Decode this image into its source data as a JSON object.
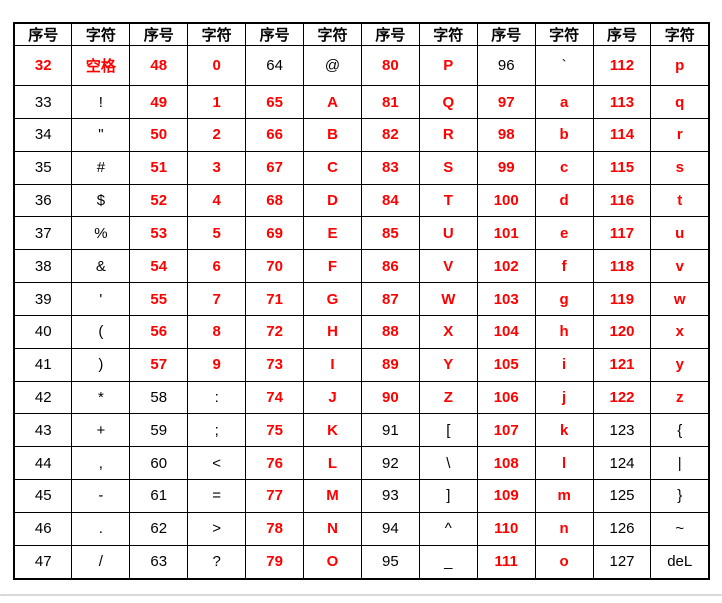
{
  "page": {
    "background": "#ffffff"
  },
  "table": {
    "column_headers": {
      "number": "序号",
      "char": "字符"
    },
    "pair_count": 6,
    "colors": {
      "highlight": "#ff0000",
      "normal": "#000000",
      "border": "#000000",
      "bottom_line": "#d9d9d9"
    },
    "rows": [
      [
        {
          "n": "32",
          "c": "空格",
          "hl": true
        },
        {
          "n": "48",
          "c": "0",
          "hl": true
        },
        {
          "n": "64",
          "c": "@",
          "hl": false
        },
        {
          "n": "80",
          "c": "P",
          "hl": true
        },
        {
          "n": "96",
          "c": "`",
          "hl": false
        },
        {
          "n": "112",
          "c": "p",
          "hl": true
        }
      ],
      [
        {
          "n": "33",
          "c": "!",
          "hl": false
        },
        {
          "n": "49",
          "c": "1",
          "hl": true
        },
        {
          "n": "65",
          "c": "A",
          "hl": true
        },
        {
          "n": "81",
          "c": "Q",
          "hl": true
        },
        {
          "n": "97",
          "c": "a",
          "hl": true
        },
        {
          "n": "113",
          "c": "q",
          "hl": true
        }
      ],
      [
        {
          "n": "34",
          "c": "\"",
          "hl": false
        },
        {
          "n": "50",
          "c": "2",
          "hl": true
        },
        {
          "n": "66",
          "c": "B",
          "hl": true
        },
        {
          "n": "82",
          "c": "R",
          "hl": true
        },
        {
          "n": "98",
          "c": "b",
          "hl": true
        },
        {
          "n": "114",
          "c": "r",
          "hl": true
        }
      ],
      [
        {
          "n": "35",
          "c": "#",
          "hl": false
        },
        {
          "n": "51",
          "c": "3",
          "hl": true
        },
        {
          "n": "67",
          "c": "C",
          "hl": true
        },
        {
          "n": "83",
          "c": "S",
          "hl": true
        },
        {
          "n": "99",
          "c": "c",
          "hl": true
        },
        {
          "n": "115",
          "c": "s",
          "hl": true
        }
      ],
      [
        {
          "n": "36",
          "c": "$",
          "hl": false
        },
        {
          "n": "52",
          "c": "4",
          "hl": true
        },
        {
          "n": "68",
          "c": "D",
          "hl": true
        },
        {
          "n": "84",
          "c": "T",
          "hl": true
        },
        {
          "n": "100",
          "c": "d",
          "hl": true
        },
        {
          "n": "116",
          "c": "t",
          "hl": true
        }
      ],
      [
        {
          "n": "37",
          "c": "%",
          "hl": false
        },
        {
          "n": "53",
          "c": "5",
          "hl": true
        },
        {
          "n": "69",
          "c": "E",
          "hl": true
        },
        {
          "n": "85",
          "c": "U",
          "hl": true
        },
        {
          "n": "101",
          "c": "e",
          "hl": true
        },
        {
          "n": "117",
          "c": "u",
          "hl": true
        }
      ],
      [
        {
          "n": "38",
          "c": "&",
          "hl": false
        },
        {
          "n": "54",
          "c": "6",
          "hl": true
        },
        {
          "n": "70",
          "c": "F",
          "hl": true
        },
        {
          "n": "86",
          "c": "V",
          "hl": true
        },
        {
          "n": "102",
          "c": "f",
          "hl": true
        },
        {
          "n": "118",
          "c": "v",
          "hl": true
        }
      ],
      [
        {
          "n": "39",
          "c": "'",
          "hl": false
        },
        {
          "n": "55",
          "c": "7",
          "hl": true
        },
        {
          "n": "71",
          "c": "G",
          "hl": true
        },
        {
          "n": "87",
          "c": "W",
          "hl": true
        },
        {
          "n": "103",
          "c": "g",
          "hl": true
        },
        {
          "n": "119",
          "c": "w",
          "hl": true
        }
      ],
      [
        {
          "n": "40",
          "c": "(",
          "hl": false
        },
        {
          "n": "56",
          "c": "8",
          "hl": true
        },
        {
          "n": "72",
          "c": "H",
          "hl": true
        },
        {
          "n": "88",
          "c": "X",
          "hl": true
        },
        {
          "n": "104",
          "c": "h",
          "hl": true
        },
        {
          "n": "120",
          "c": "x",
          "hl": true
        }
      ],
      [
        {
          "n": "41",
          "c": ")",
          "hl": false
        },
        {
          "n": "57",
          "c": "9",
          "hl": true
        },
        {
          "n": "73",
          "c": "I",
          "hl": true
        },
        {
          "n": "89",
          "c": "Y",
          "hl": true
        },
        {
          "n": "105",
          "c": "i",
          "hl": true
        },
        {
          "n": "121",
          "c": "y",
          "hl": true
        }
      ],
      [
        {
          "n": "42",
          "c": "*",
          "hl": false
        },
        {
          "n": "58",
          "c": ":",
          "hl": false
        },
        {
          "n": "74",
          "c": "J",
          "hl": true
        },
        {
          "n": "90",
          "c": "Z",
          "hl": true
        },
        {
          "n": "106",
          "c": "j",
          "hl": true
        },
        {
          "n": "122",
          "c": "z",
          "hl": true
        }
      ],
      [
        {
          "n": "43",
          "c": "+",
          "hl": false
        },
        {
          "n": "59",
          "c": ";",
          "hl": false
        },
        {
          "n": "75",
          "c": "K",
          "hl": true
        },
        {
          "n": "91",
          "c": "[",
          "hl": false
        },
        {
          "n": "107",
          "c": "k",
          "hl": true
        },
        {
          "n": "123",
          "c": "{",
          "hl": false
        }
      ],
      [
        {
          "n": "44",
          "c": ",",
          "hl": false
        },
        {
          "n": "60",
          "c": "<",
          "hl": false
        },
        {
          "n": "76",
          "c": "L",
          "hl": true
        },
        {
          "n": "92",
          "c": "\\",
          "hl": false
        },
        {
          "n": "108",
          "c": "l",
          "hl": true
        },
        {
          "n": "124",
          "c": "|",
          "hl": false
        }
      ],
      [
        {
          "n": "45",
          "c": "-",
          "hl": false
        },
        {
          "n": "61",
          "c": "=",
          "hl": false
        },
        {
          "n": "77",
          "c": "M",
          "hl": true
        },
        {
          "n": "93",
          "c": "]",
          "hl": false
        },
        {
          "n": "109",
          "c": "m",
          "hl": true
        },
        {
          "n": "125",
          "c": "}",
          "hl": false
        }
      ],
      [
        {
          "n": "46",
          "c": ".",
          "hl": false
        },
        {
          "n": "62",
          "c": ">",
          "hl": false
        },
        {
          "n": "78",
          "c": "N",
          "hl": true
        },
        {
          "n": "94",
          "c": "^",
          "hl": false
        },
        {
          "n": "110",
          "c": "n",
          "hl": true
        },
        {
          "n": "126",
          "c": "~",
          "hl": false
        }
      ],
      [
        {
          "n": "47",
          "c": "/",
          "hl": false
        },
        {
          "n": "63",
          "c": "?",
          "hl": false
        },
        {
          "n": "79",
          "c": "O",
          "hl": true
        },
        {
          "n": "95",
          "c": "_",
          "hl": false
        },
        {
          "n": "111",
          "c": "o",
          "hl": true
        },
        {
          "n": "127",
          "c": "deL",
          "hl": false
        }
      ]
    ]
  }
}
